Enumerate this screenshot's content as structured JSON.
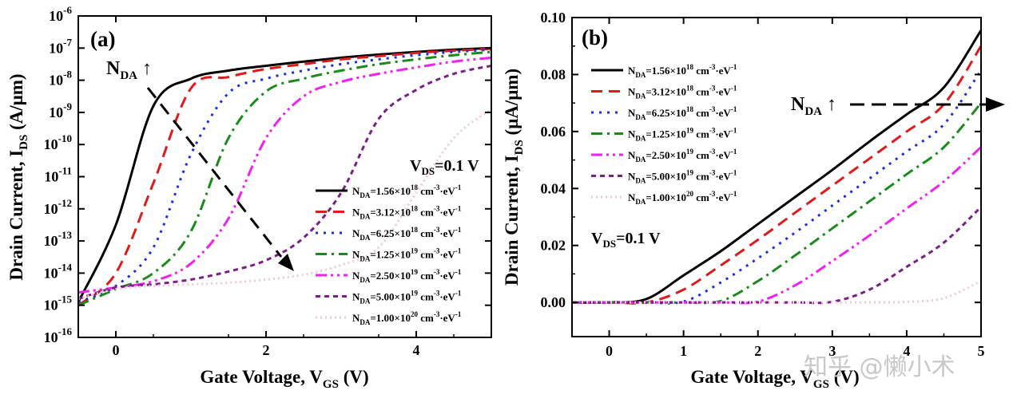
{
  "chart_data": [
    {
      "type": "line",
      "panel": "(a)",
      "xlabel": "Gate Voltage, V",
      "xlabel_sub": "GS",
      "xlabel_unit": " (V)",
      "ylabel": "Drain Current, I",
      "ylabel_sub": "DS",
      "ylabel_unit": " (A/μm)",
      "xlim": [
        -0.5,
        5
      ],
      "ylim_log10": [
        -16,
        -6
      ],
      "yscale": "log",
      "x_ticks": [
        "0",
        "2",
        "4"
      ],
      "y_ticks_exp": [
        "-16",
        "-15",
        "-14",
        "-13",
        "-12",
        "-11",
        "-10",
        "-9",
        "-8",
        "-7",
        "-6"
      ],
      "annotation_nda": "N",
      "annotation_nda_sub": "DA",
      "annotation_arrow_glyph": "↑",
      "annotation_vds": "V",
      "annotation_vds_sub": "DS",
      "annotation_vds_value": "=0.1 V",
      "legend_position": "lower-right",
      "x": [
        -0.5,
        0.0,
        0.5,
        1.0,
        1.5,
        2.0,
        2.5,
        3.0,
        3.5,
        4.0,
        4.5,
        5.0
      ],
      "series": [
        {
          "name": "N_DA=1.56×10^18 cm^-3·eV^-1",
          "log10_y": [
            -14.9,
            -12.5,
            -8.8,
            -7.95,
            -7.7,
            -7.55,
            -7.42,
            -7.3,
            -7.2,
            -7.12,
            -7.05,
            -7.0
          ]
        },
        {
          "name": "N_DA=3.12×10^18 cm^-3·eV^-1",
          "log10_y": [
            -15.0,
            -14.0,
            -11.2,
            -8.25,
            -7.9,
            -7.65,
            -7.5,
            -7.35,
            -7.25,
            -7.15,
            -7.08,
            -7.02
          ]
        },
        {
          "name": "N_DA=6.25×10^18 cm^-3·eV^-1",
          "log10_y": [
            -14.9,
            -14.4,
            -13.2,
            -10.3,
            -8.4,
            -7.95,
            -7.7,
            -7.5,
            -7.35,
            -7.22,
            -7.12,
            -7.05
          ]
        },
        {
          "name": "N_DA=1.25×10^19 cm^-3·eV^-1",
          "log10_y": [
            -15.0,
            -14.5,
            -14.0,
            -12.7,
            -9.8,
            -8.35,
            -7.95,
            -7.7,
            -7.5,
            -7.35,
            -7.22,
            -7.12
          ]
        },
        {
          "name": "N_DA=2.50×10^19 cm^-3·eV^-1",
          "log10_y": [
            -14.6,
            -14.45,
            -14.25,
            -13.7,
            -12.3,
            -9.8,
            -8.5,
            -8.05,
            -7.8,
            -7.6,
            -7.42,
            -7.3
          ]
        },
        {
          "name": "N_DA=5.00×10^19 cm^-3·eV^-1",
          "log10_y": [
            -14.8,
            -14.45,
            -14.35,
            -14.2,
            -13.95,
            -13.6,
            -12.9,
            -11.5,
            -9.2,
            -8.3,
            -7.8,
            -7.55
          ]
        },
        {
          "name": "N_DA=1.00×10^20 cm^-3·eV^-1",
          "log10_y": [
            -14.8,
            -14.5,
            -14.4,
            -14.35,
            -14.3,
            -14.2,
            -14.05,
            -13.75,
            -13.2,
            -11.5,
            -9.8,
            -8.9
          ]
        }
      ]
    },
    {
      "type": "line",
      "panel": "(b)",
      "xlabel": "Gate Voltage, V",
      "xlabel_sub": "GS",
      "xlabel_unit": " (V)",
      "ylabel": "Drain Current, I",
      "ylabel_sub": "DS",
      "ylabel_unit": " (μA/μm)",
      "xlim": [
        -0.5,
        5
      ],
      "ylim": [
        -0.012,
        0.1
      ],
      "x_ticks": [
        "0",
        "1",
        "2",
        "3",
        "4",
        "5"
      ],
      "y_ticks": [
        "0.00",
        "0.02",
        "0.04",
        "0.06",
        "0.08",
        "0.10"
      ],
      "annotation_nda": "N",
      "annotation_nda_sub": "DA",
      "annotation_arrow_glyph": "↑",
      "annotation_vds": "V",
      "annotation_vds_sub": "DS",
      "annotation_vds_value": "=0.1 V",
      "legend_position": "upper-left",
      "x": [
        -0.5,
        0.0,
        0.5,
        1.0,
        1.5,
        2.0,
        2.5,
        3.0,
        3.5,
        4.0,
        4.5,
        5.0
      ],
      "series": [
        {
          "name": "N_DA=1.56×10^18 cm^-3·eV^-1",
          "y": [
            0,
            0,
            0.0012,
            0.0095,
            0.018,
            0.0275,
            0.037,
            0.0465,
            0.0565,
            0.066,
            0.0755,
            0.0955
          ]
        },
        {
          "name": "N_DA=3.12×10^18 cm^-3·eV^-1",
          "y": [
            0,
            0,
            0,
            0.0045,
            0.013,
            0.022,
            0.0315,
            0.041,
            0.0505,
            0.06,
            0.0695,
            0.09
          ]
        },
        {
          "name": "N_DA=6.25×10^18 cm^-3·eV^-1",
          "y": [
            0,
            0,
            0,
            0.0003,
            0.007,
            0.0155,
            0.0245,
            0.034,
            0.0435,
            0.053,
            0.0625,
            0.0815
          ]
        },
        {
          "name": "N_DA=1.25×10^19 cm^-3·eV^-1",
          "y": [
            0,
            0,
            0,
            0,
            0.0005,
            0.0075,
            0.0165,
            0.026,
            0.0355,
            0.045,
            0.0545,
            0.07
          ]
        },
        {
          "name": "N_DA=2.50×10^19 cm^-3·eV^-1",
          "y": [
            0,
            0,
            0,
            0,
            0,
            0.0003,
            0.006,
            0.0145,
            0.0235,
            0.033,
            0.0425,
            0.0545
          ]
        },
        {
          "name": "N_DA=5.00×10^19 cm^-3·eV^-1",
          "y": [
            0,
            0,
            0,
            0,
            0,
            0,
            0,
            0.0002,
            0.0045,
            0.0125,
            0.021,
            0.0335
          ]
        },
        {
          "name": "N_DA=1.00×10^20 cm^-3·eV^-1",
          "y": [
            0,
            0,
            0,
            0,
            0,
            0,
            0,
            0,
            0,
            0.0002,
            0.0015,
            0.0075
          ]
        }
      ]
    }
  ],
  "legend_entries": [
    {
      "pre": "N",
      "sub": "DA",
      "mant": "=1.56×10",
      "exp": "18",
      "units": " cm",
      "cm_exp": "-3",
      "dot": "·eV",
      "ev_exp": "-1",
      "color": "#000000",
      "dash": "solid"
    },
    {
      "pre": "N",
      "sub": "DA",
      "mant": "=3.12×10",
      "exp": "18",
      "units": " cm",
      "cm_exp": "-3",
      "dot": "·eV",
      "ev_exp": "-1",
      "color": "#e01a1a",
      "dash": "dash"
    },
    {
      "pre": "N",
      "sub": "DA",
      "mant": "=6.25×10",
      "exp": "18",
      "units": " cm",
      "cm_exp": "-3",
      "dot": "·eV",
      "ev_exp": "-1",
      "color": "#1a2fe0",
      "dash": "dot"
    },
    {
      "pre": "N",
      "sub": "DA",
      "mant": "=1.25×10",
      "exp": "19",
      "units": " cm",
      "cm_exp": "-3",
      "dot": "·eV",
      "ev_exp": "-1",
      "color": "#1a8a1a",
      "dash": "dashdot"
    },
    {
      "pre": "N",
      "sub": "DA",
      "mant": "=2.50×10",
      "exp": "19",
      "units": " cm",
      "cm_exp": "-3",
      "dot": "·eV",
      "ev_exp": "-1",
      "color": "#f020f0",
      "dash": "dashdotdot"
    },
    {
      "pre": "N",
      "sub": "DA",
      "mant": "=5.00×10",
      "exp": "19",
      "units": " cm",
      "cm_exp": "-3",
      "dot": "·eV",
      "ev_exp": "-1",
      "color": "#7a1f86",
      "dash": "shortdash"
    },
    {
      "pre": "N",
      "sub": "DA",
      "mant": "=1.00×10",
      "exp": "20",
      "units": " cm",
      "cm_exp": "-3",
      "dot": "·eV",
      "ev_exp": "-1",
      "color": "#f0c8d8",
      "dash": "shortdot"
    }
  ],
  "watermark": "知乎 @懒小术",
  "tick_base": "10"
}
